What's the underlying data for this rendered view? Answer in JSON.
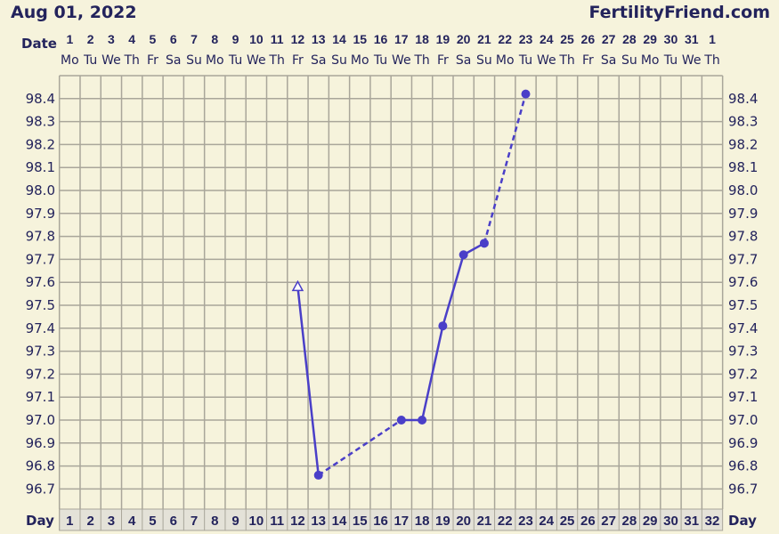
{
  "header": {
    "title": "Aug 01, 2022",
    "brand": "FertilityFriend.com"
  },
  "colors": {
    "background": "#f6f3dc",
    "grid": "#a9a69a",
    "series": "#4a3fc8",
    "text": "#23235c"
  },
  "chart_data": {
    "type": "line",
    "title": "",
    "date_label": "Date",
    "day_label": "Day",
    "dates": [
      "1",
      "2",
      "3",
      "4",
      "5",
      "6",
      "7",
      "8",
      "9",
      "10",
      "11",
      "12",
      "13",
      "14",
      "15",
      "16",
      "17",
      "18",
      "19",
      "20",
      "21",
      "22",
      "23",
      "24",
      "25",
      "26",
      "27",
      "28",
      "29",
      "30",
      "31",
      "1"
    ],
    "weekdays": [
      "Mo",
      "Tu",
      "We",
      "Th",
      "Fr",
      "Sa",
      "Su",
      "Mo",
      "Tu",
      "We",
      "Th",
      "Fr",
      "Sa",
      "Su",
      "Mo",
      "Tu",
      "We",
      "Th",
      "Fr",
      "Sa",
      "Su",
      "Mo",
      "Tu",
      "We",
      "Th",
      "Fr",
      "Sa",
      "Su",
      "Mo",
      "Tu",
      "We",
      "Th"
    ],
    "days": [
      "1",
      "2",
      "3",
      "4",
      "5",
      "6",
      "7",
      "8",
      "9",
      "10",
      "11",
      "12",
      "13",
      "14",
      "15",
      "16",
      "17",
      "18",
      "19",
      "20",
      "21",
      "22",
      "23",
      "24",
      "25",
      "26",
      "27",
      "28",
      "29",
      "30",
      "31",
      "32"
    ],
    "y_ticks": [
      "98.4",
      "98.3",
      "98.2",
      "98.1",
      "98.0",
      "97.9",
      "97.8",
      "97.7",
      "97.6",
      "97.5",
      "97.4",
      "97.3",
      "97.2",
      "97.1",
      "97.0",
      "96.9",
      "96.8",
      "96.7"
    ],
    "ylim": [
      96.6,
      98.5
    ],
    "grid": true,
    "points": [
      {
        "day": 12,
        "temp": 97.58,
        "marker": "open-triangle"
      },
      {
        "day": 13,
        "temp": 96.76,
        "marker": "dot"
      },
      {
        "day": 17,
        "temp": 97.0,
        "marker": "dot"
      },
      {
        "day": 18,
        "temp": 97.0,
        "marker": "dot"
      },
      {
        "day": 19,
        "temp": 97.41,
        "marker": "dot"
      },
      {
        "day": 20,
        "temp": 97.72,
        "marker": "dot"
      },
      {
        "day": 21,
        "temp": 97.77,
        "marker": "dot"
      },
      {
        "day": 23,
        "temp": 98.42,
        "marker": "dot"
      }
    ],
    "segments": [
      {
        "from": 12,
        "to": 13,
        "style": "solid"
      },
      {
        "from": 13,
        "to": 17,
        "style": "dashed"
      },
      {
        "from": 17,
        "to": 18,
        "style": "solid"
      },
      {
        "from": 18,
        "to": 19,
        "style": "solid"
      },
      {
        "from": 19,
        "to": 20,
        "style": "solid"
      },
      {
        "from": 20,
        "to": 21,
        "style": "solid"
      },
      {
        "from": 21,
        "to": 23,
        "style": "dashed"
      }
    ]
  }
}
